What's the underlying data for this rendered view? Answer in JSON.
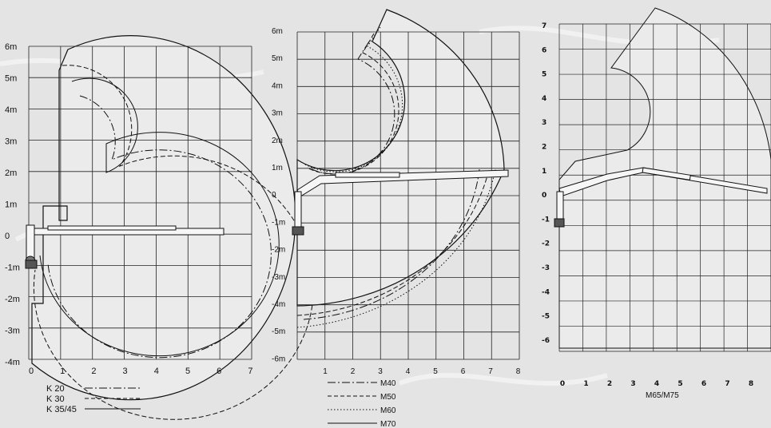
{
  "diagrams": [
    {
      "x_ticks": [
        "0",
        "1",
        "2",
        "3",
        "4",
        "5",
        "6",
        "7"
      ],
      "y_ticks": [
        "6m",
        "5m",
        "4m",
        "3m",
        "2m",
        "1m",
        "0",
        "-1m",
        "-2m",
        "-3m",
        "-4m"
      ],
      "legend": [
        {
          "label": "K 20",
          "style": "dash-dot"
        },
        {
          "label": "K 30",
          "style": "dashed"
        },
        {
          "label": "K 35/45",
          "style": "solid"
        }
      ]
    },
    {
      "x_ticks": [
        "1",
        "2",
        "3",
        "4",
        "5",
        "6",
        "7",
        "8"
      ],
      "y_ticks": [
        "6m",
        "5m",
        "4m",
        "3m",
        "2m",
        "1m",
        "0",
        "-1m",
        "-2m",
        "-3m",
        "-4m",
        "-5m",
        "-6m"
      ],
      "legend": [
        {
          "label": "M40",
          "style": "dash-dot"
        },
        {
          "label": "M50",
          "style": "dashed"
        },
        {
          "label": "M60",
          "style": "dotted"
        },
        {
          "label": "M70",
          "style": "solid"
        }
      ]
    },
    {
      "x_ticks": [
        "0",
        "1",
        "2",
        "3",
        "4",
        "5",
        "6",
        "7",
        "8"
      ],
      "y_ticks": [
        "7",
        "6",
        "5",
        "4",
        "3",
        "2",
        "1",
        "0",
        "-1",
        "-2",
        "-3",
        "-4",
        "-5",
        "-6"
      ],
      "caption": "M65/M75"
    }
  ],
  "colors": {
    "background": "#e4e4e4",
    "grid": "#222222",
    "outline": "#111111",
    "envelope_fill": "#e9e9e9"
  }
}
